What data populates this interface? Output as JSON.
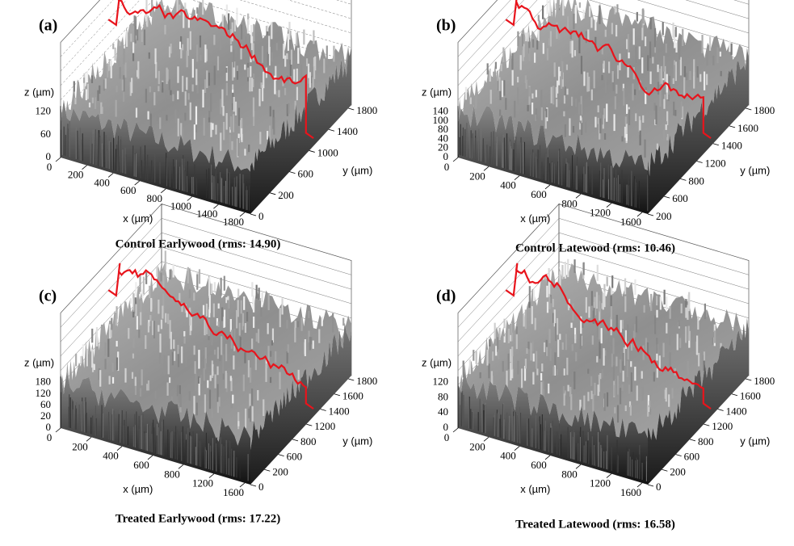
{
  "panels": [
    {
      "label": "(a)",
      "caption": "Control Earlywood (rms: 14.90)",
      "z_label": "z (µm)",
      "z_ticks": [
        "0",
        "60",
        "120"
      ],
      "x_label": "x (µm)",
      "x_ticks": [
        "0",
        "200",
        "400",
        "600",
        "800",
        "1000",
        "1400",
        "1800"
      ],
      "y_label": "y (µm)",
      "y_ticks": [
        "0",
        "200",
        "600",
        "1000",
        "1400",
        "1800"
      ]
    },
    {
      "label": "(b)",
      "caption": "Control Latewood (rms: 10.46)",
      "z_label": "z (µm)",
      "z_ticks": [
        "0",
        "20",
        "40",
        "80",
        "100",
        "140"
      ],
      "x_label": "x (µm)",
      "x_ticks": [
        "0",
        "200",
        "400",
        "600",
        "800",
        "1200",
        "1600"
      ],
      "y_label": "y (µm)",
      "y_ticks": [
        "200",
        "600",
        "800",
        "1200",
        "1400",
        "1600",
        "1800"
      ]
    },
    {
      "label": "(c)",
      "caption": "Treated Earlywood (rms: 17.22)",
      "z_label": "z (µm)",
      "z_ticks": [
        "0",
        "20",
        "60",
        "120",
        "180"
      ],
      "x_label": "x (µm)",
      "x_ticks": [
        "0",
        "200",
        "400",
        "600",
        "800",
        "1200",
        "1600"
      ],
      "y_label": "y (µm)",
      "y_ticks": [
        "0",
        "200",
        "600",
        "800",
        "1200",
        "1400",
        "1600",
        "1800"
      ]
    },
    {
      "label": "(d)",
      "caption": "Treated Latewood (rms: 16.58)",
      "z_label": "z (µm)",
      "z_ticks": [
        "0",
        "40",
        "80",
        "120"
      ],
      "x_label": "x (µm)",
      "x_ticks": [
        "0",
        "200",
        "400",
        "600",
        "800",
        "1200",
        "1600"
      ],
      "y_label": "y (µm)",
      "y_ticks": [
        "0",
        "200",
        "600",
        "800",
        "1200",
        "1400",
        "1600",
        "1800"
      ]
    }
  ]
}
